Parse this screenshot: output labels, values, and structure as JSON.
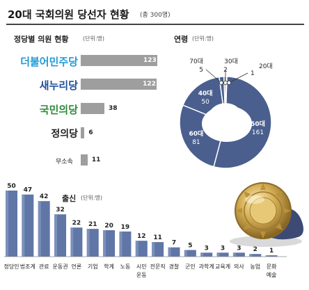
{
  "header": {
    "title": "20대 국회의원 당선자 현황",
    "subtitle": "(총 300명)"
  },
  "chart_data": [
    {
      "type": "bar",
      "orientation": "horizontal",
      "title": "정당별 의원 현황",
      "unit": "(단위:명)",
      "categories": [
        "더불어민주당",
        "새누리당",
        "국민의당",
        "정의당",
        "무소속"
      ],
      "values": [
        123,
        122,
        38,
        6,
        11
      ],
      "xlim": [
        0,
        123
      ]
    },
    {
      "type": "pie",
      "title": "연령",
      "unit": "(단위:명)",
      "categories": [
        "50대",
        "60대",
        "40대",
        "70대",
        "30대",
        "20대"
      ],
      "values": [
        161,
        81,
        50,
        5,
        2,
        1
      ]
    },
    {
      "type": "bar",
      "title": "출신",
      "unit": "(단위:명)",
      "categories": [
        "정당인",
        "법조계",
        "관료",
        "운동권",
        "언론",
        "기업",
        "학계",
        "노동",
        "시민운동",
        "전문직",
        "경찰",
        "군인",
        "과학계",
        "교육계",
        "의사",
        "농업",
        "문화예술"
      ],
      "values": [
        50,
        47,
        42,
        32,
        22,
        21,
        20,
        19,
        12,
        11,
        7,
        5,
        3,
        3,
        3,
        2,
        1
      ],
      "ylim": [
        0,
        50
      ]
    }
  ],
  "colors": {
    "party_brand": [
      "#1e9bd7",
      "#1f4e9c",
      "#2f8a3a",
      "#222222",
      "#222222"
    ],
    "party_bar": "#9e9e9e",
    "value_on_bar": "#ffffff",
    "value_off_bar": "#222222",
    "pie_dark": "#4a5f8e",
    "pie_white": "#ffffff",
    "pie_label": "#ffffff",
    "column_fill": "#6076a6",
    "column_gradient_light": "#8ea2c8",
    "badge_gold": "#c9a44a"
  },
  "icons": {
    "badge": "national-assembly-badge-icon"
  }
}
